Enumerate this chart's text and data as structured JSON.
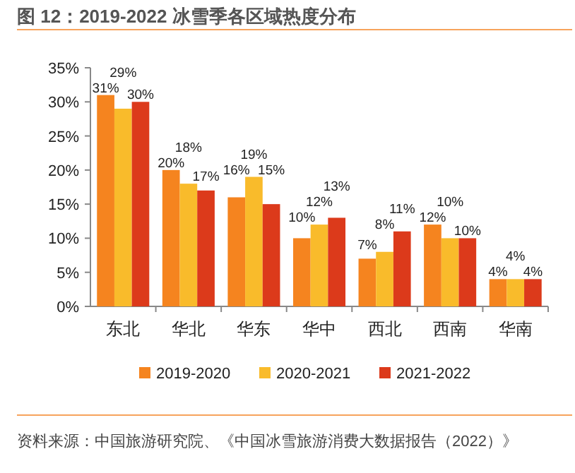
{
  "chart_data": {
    "type": "bar",
    "title": "图 12：2019-2022 冰雪季各区域热度分布",
    "categories": [
      "东北",
      "华北",
      "华东",
      "华中",
      "西北",
      "西南",
      "华南"
    ],
    "series": [
      {
        "name": "2019-2020",
        "color": "#f5841f",
        "values": [
          31,
          20,
          16,
          10,
          7,
          12,
          4
        ],
        "value_labels": [
          "31%",
          "20%",
          "16%",
          "10%",
          "7%",
          "12%",
          "4%"
        ]
      },
      {
        "name": "2020-2021",
        "color": "#f9bb2b",
        "values": [
          29,
          18,
          19,
          12,
          8,
          10,
          4
        ],
        "value_labels": [
          "29%",
          "18%",
          "19%",
          "12%",
          "8%",
          "10%",
          "4%"
        ]
      },
      {
        "name": "2021-2022",
        "color": "#dc3a1b",
        "values": [
          30,
          17,
          15,
          13,
          11,
          10,
          4
        ],
        "value_labels": [
          "30%",
          "17%",
          "15%",
          "13%",
          "11%",
          "10%",
          "4%"
        ]
      }
    ],
    "ylim": [
      0,
      35
    ],
    "yticks": [
      {
        "value": 0,
        "label": "0%"
      },
      {
        "value": 5,
        "label": "5%"
      },
      {
        "value": 10,
        "label": "10%"
      },
      {
        "value": 15,
        "label": "15%"
      },
      {
        "value": 20,
        "label": "20%"
      },
      {
        "value": 25,
        "label": "25%"
      },
      {
        "value": 30,
        "label": "30%"
      },
      {
        "value": 35,
        "label": "35%"
      }
    ],
    "legend": "bottom",
    "annotations": [
      "资料来源：中国旅游研究院、《中国冰雪旅游消费大数据报告（2022）》"
    ]
  }
}
